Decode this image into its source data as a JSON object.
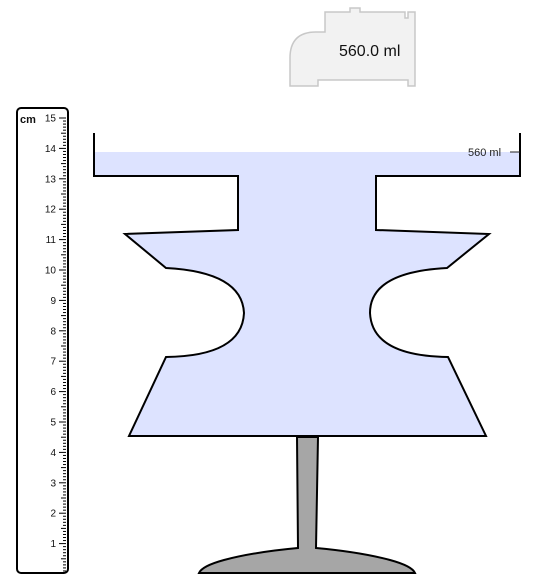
{
  "tap": {
    "volume_display": "560.0 ml"
  },
  "ruler": {
    "unit": "cm",
    "labels": [
      "1",
      "2",
      "3",
      "4",
      "5",
      "6",
      "7",
      "8",
      "9",
      "10",
      "11",
      "12",
      "13",
      "14",
      "15"
    ]
  },
  "container": {
    "water_level_label": "560 ml",
    "volume_ml": 560
  },
  "colors": {
    "water": "#dde3ff",
    "container_stroke": "#000000",
    "stand_fill": "#a6a6a6",
    "tap_fill": "#f2f2f2",
    "tap_stroke": "#c8c8c8"
  }
}
